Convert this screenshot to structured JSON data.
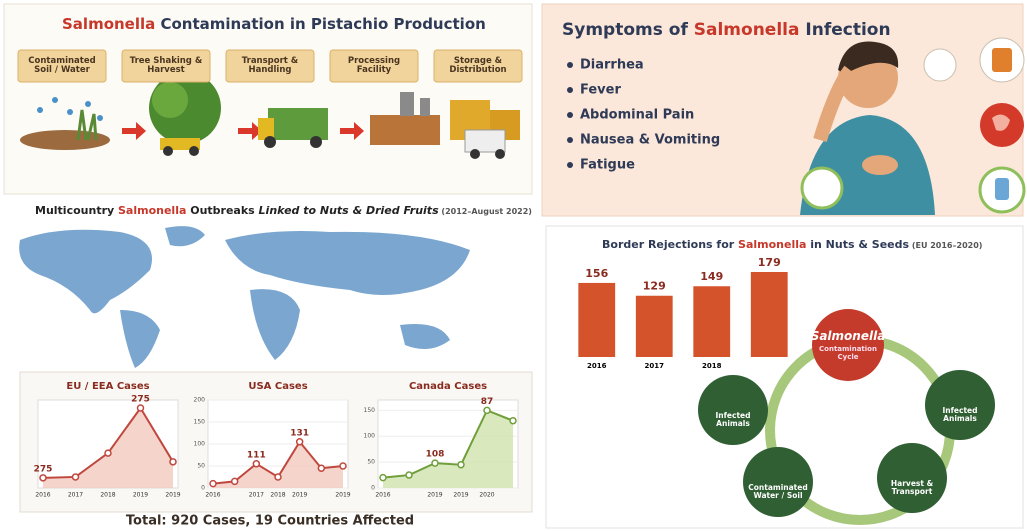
{
  "pistachio_panel": {
    "title_parts": [
      "Salmonella",
      " Contamination in Pistachio Production"
    ],
    "stages": [
      "Contaminated Soil / Water",
      "Tree Shaking & Harvest",
      "Transport & Handling",
      "Processing Facility",
      "Storage & Distribution"
    ]
  },
  "symptoms_panel": {
    "title_parts": [
      "Symptoms of ",
      "Salmonella",
      " Infection"
    ],
    "symptoms": [
      "Diarrhea",
      "Fever",
      "Abdominal Pain",
      "Nausea & Vomiting",
      "Fatigue"
    ]
  },
  "outbreaks_panel": {
    "title_parts": [
      "Multicountry ",
      "Salmonella",
      " Outbreaks ",
      "Linked to Nuts & Dried Fruits",
      " (2012–August 2022)"
    ],
    "footer": "Total: 920 Cases, 19 Countries Affected"
  },
  "rejections_panel": {
    "title_parts": [
      "Border Rejections for ",
      "Salmonella",
      " in Nuts & Seeds",
      " (EU 2016–2020)"
    ]
  },
  "cycle": {
    "center_title": "Salmonella",
    "center_subtitle": "Contamination Cycle",
    "nodes": [
      "Infected Animals",
      "Infected Animals",
      "Harvest & Transport",
      "Contaminated Water / Soil"
    ]
  },
  "chart_data": [
    {
      "type": "bar",
      "categories": [
        "2016",
        "2017",
        "2018",
        null
      ],
      "values": [
        156,
        129,
        149,
        179
      ],
      "color": "#d4532b"
    },
    {
      "type": "line",
      "title": "EU / EEA Cases",
      "categories": [
        "2016",
        "2017",
        "2018",
        "2019",
        "2019"
      ],
      "values": [
        35,
        38,
        120,
        275,
        90
      ],
      "annotations": [
        "275",
        "275"
      ],
      "color": "#c0473e",
      "fill": "#f3c9bf"
    },
    {
      "type": "line",
      "title": "USA Cases",
      "categories": [
        "2016",
        null,
        "2017",
        "2018",
        "2019",
        null,
        "2019"
      ],
      "values": [
        10,
        15,
        55,
        25,
        105,
        45,
        50
      ],
      "ylim": [
        0,
        200
      ],
      "yticks": [
        0,
        50,
        100,
        150,
        200
      ],
      "annotations": [
        "111",
        "131"
      ],
      "color": "#c0473e",
      "fill": "#f3c9bf"
    },
    {
      "type": "line",
      "title": "Canada Cases",
      "categories": [
        "2016",
        null,
        "2019",
        "2019",
        "2020",
        null
      ],
      "values": [
        20,
        25,
        48,
        45,
        150,
        130
      ],
      "ylim": [
        0,
        170
      ],
      "yticks": [
        0,
        50,
        100,
        150
      ],
      "annotations": [
        "108",
        "87"
      ],
      "color": "#6f9e3a",
      "fill": "#cfe3ad"
    }
  ]
}
